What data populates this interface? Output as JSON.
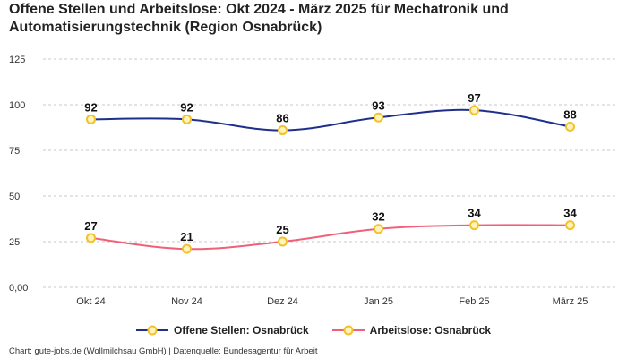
{
  "chart_data": {
    "type": "line",
    "title": "Offene Stellen und Arbeitslose: Okt 2024 - März 2025 für Mechatronik und Automatisierungstechnik (Region Osnabrück)",
    "categories": [
      "Okt 24",
      "Nov 24",
      "Dez 24",
      "Jan 25",
      "Feb 25",
      "März 25"
    ],
    "y_ticks": [
      "0,00",
      "25",
      "50",
      "75",
      "100",
      "125"
    ],
    "ylim": [
      0,
      125
    ],
    "grid": true,
    "legend_position": "bottom-center",
    "series": [
      {
        "name": "Offene Stellen: Osnabrück",
        "values": [
          92,
          92,
          86,
          93,
          97,
          88
        ],
        "color": "#1f2f8c"
      },
      {
        "name": "Arbeitslose: Osnabrück",
        "values": [
          27,
          21,
          25,
          32,
          34,
          34
        ],
        "color": "#f0607a"
      }
    ],
    "marker_fill": "#fff5b8",
    "marker_stroke": "#f2c12e"
  },
  "credit": "Chart: gute-jobs.de (Wollmilchsau GmbH) | Datenquelle: Bundesagentur für Arbeit"
}
